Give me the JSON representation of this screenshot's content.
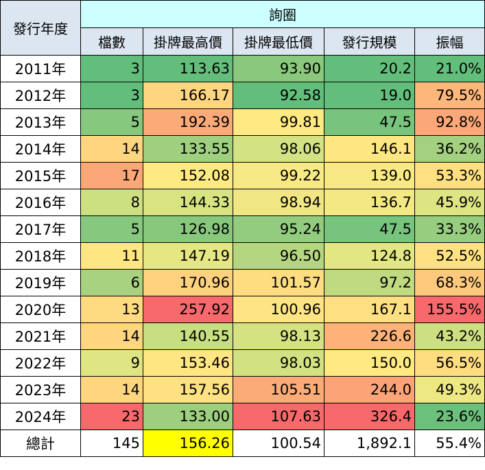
{
  "table": {
    "header": {
      "year": "發行年度",
      "group": "詢圈",
      "columns": [
        "檔數",
        "掛牌最高價",
        "掛牌最低價",
        "發行規模",
        "振幅"
      ]
    },
    "rows": [
      {
        "year": "2011年",
        "cells": [
          "3",
          "113.63",
          "93.90",
          "20.2",
          "21.0%"
        ],
        "colors": [
          "#63be7b",
          "#63be7b",
          "#8ac97d",
          "#63be7b",
          "#63be7b"
        ]
      },
      {
        "year": "2012年",
        "cells": [
          "3",
          "166.17",
          "92.58",
          "19.0",
          "79.5%"
        ],
        "colors": [
          "#63be7b",
          "#fed680",
          "#63be7b",
          "#63be7b",
          "#fdb77a"
        ]
      },
      {
        "year": "2013年",
        "cells": [
          "5",
          "192.39",
          "99.81",
          "47.5",
          "92.8%"
        ],
        "colors": [
          "#86c87d",
          "#fcaa78",
          "#fee983",
          "#77c47d",
          "#fca777"
        ]
      },
      {
        "year": "2014年",
        "cells": [
          "14",
          "133.55",
          "98.06",
          "146.1",
          "36.2%"
        ],
        "colors": [
          "#fed680",
          "#9fd07f",
          "#d3e282",
          "#fee683",
          "#a4d17f"
        ]
      },
      {
        "year": "2015年",
        "cells": [
          "17",
          "152.08",
          "99.22",
          "139.0",
          "53.3%"
        ],
        "colors": [
          "#fca777",
          "#fee983",
          "#f7e984",
          "#f8e984",
          "#fee082"
        ]
      },
      {
        "year": "2016年",
        "cells": [
          "8",
          "144.33",
          "98.94",
          "136.7",
          "45.9%"
        ],
        "colors": [
          "#cde081",
          "#d8e482",
          "#f0e784",
          "#f3e884",
          "#dde582"
        ]
      },
      {
        "year": "2017年",
        "cells": [
          "5",
          "126.98",
          "95.24",
          "47.5",
          "33.3%"
        ],
        "colors": [
          "#86c87d",
          "#88c87d",
          "#93cc7e",
          "#77c47d",
          "#97cd7e"
        ]
      },
      {
        "year": "2018年",
        "cells": [
          "11",
          "147.19",
          "96.50",
          "124.8",
          "52.5%"
        ],
        "colors": [
          "#fee783",
          "#e5e783",
          "#b5d680",
          "#e2e683",
          "#fee282"
        ]
      },
      {
        "year": "2019年",
        "cells": [
          "6",
          "170.96",
          "101.57",
          "97.2",
          "68.3%"
        ],
        "colors": [
          "#a8d27f",
          "#fed17f",
          "#fedd81",
          "#bfda81",
          "#fec97d"
        ]
      },
      {
        "year": "2020年",
        "cells": [
          "13",
          "257.92",
          "100.96",
          "167.1",
          "155.5%"
        ],
        "colors": [
          "#fedb81",
          "#f8696b",
          "#fee482",
          "#fedf82",
          "#f8696b"
        ]
      },
      {
        "year": "2021年",
        "cells": [
          "14",
          "140.55",
          "98.13",
          "226.6",
          "43.2%"
        ],
        "colors": [
          "#fed680",
          "#c8df81",
          "#d4e282",
          "#fcb279",
          "#cde081"
        ]
      },
      {
        "year": "2022年",
        "cells": [
          "9",
          "153.46",
          "98.03",
          "150.0",
          "56.5%"
        ],
        "colors": [
          "#dfe583",
          "#fee683",
          "#d2e182",
          "#fee983",
          "#fedd81"
        ]
      },
      {
        "year": "2023年",
        "cells": [
          "14",
          "157.56",
          "105.51",
          "244.0",
          "49.3%"
        ],
        "colors": [
          "#fed680",
          "#fee182",
          "#fbab78",
          "#fca377",
          "#ede884"
        ]
      },
      {
        "year": "2024年",
        "cells": [
          "23",
          "133.00",
          "107.63",
          "326.4",
          "23.6%"
        ],
        "colors": [
          "#f8696b",
          "#9dcf7f",
          "#f8696b",
          "#f8696b",
          "#6bc07b"
        ]
      }
    ],
    "total": {
      "label": "總計",
      "cells": [
        "145",
        "156.26",
        "100.54",
        "1,892.1",
        "55.4%"
      ],
      "colors": [
        "#ffffff",
        "#ffff00",
        "#ffffff",
        "#ffffff",
        "#ffffff"
      ]
    }
  }
}
